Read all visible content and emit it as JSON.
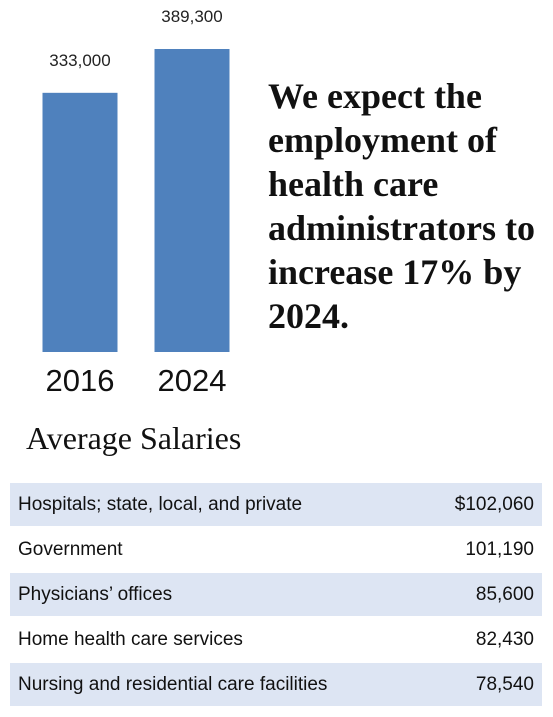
{
  "chart_data": {
    "type": "bar",
    "categories": [
      "2016",
      "2024"
    ],
    "values": [
      333000,
      389300
    ],
    "value_labels": [
      "333,000",
      "389,300"
    ],
    "color": "#4f81bd",
    "ylim": [
      0,
      389300
    ]
  },
  "headline": "We expect the employment of health care administrators to increase 17% by 2024.",
  "salaries": {
    "title": "Average Salaries",
    "rows": [
      {
        "label": "Hospitals; state, local, and private",
        "value": "$102,060"
      },
      {
        "label": "Government",
        "value": "101,190"
      },
      {
        "label": "Physicians’ offices",
        "value": "85,600"
      },
      {
        "label": "Home health care services",
        "value": "82,430"
      },
      {
        "label": "Nursing and residential care facilities",
        "value": "78,540"
      }
    ],
    "shade_color": "#dde5f3"
  }
}
